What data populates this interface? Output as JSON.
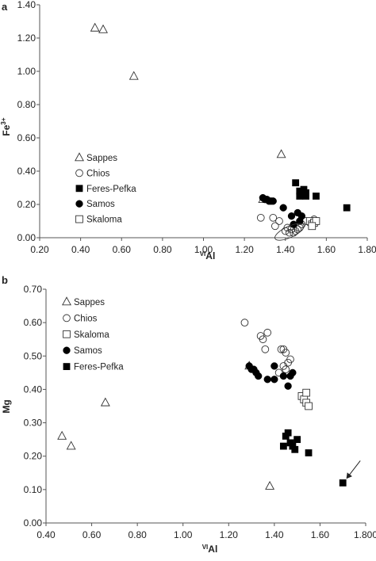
{
  "chart_data": [
    {
      "panel": "a",
      "type": "scatter",
      "xlabel_sup": "VI",
      "xlabel": "Al",
      "ylabel": "Fe",
      "ylabel_sup": "3+",
      "xlim": [
        0.2,
        1.8
      ],
      "ylim": [
        0.0,
        1.4
      ],
      "x_ticks": [
        "0.20",
        "0.40",
        "0.60",
        "0.80",
        "1.00",
        "1.20",
        "1.40",
        "1.60",
        "1.80"
      ],
      "y_ticks": [
        "0.00",
        "0.20",
        "0.40",
        "0.60",
        "0.80",
        "1.00",
        "1.20",
        "1.40"
      ],
      "grid": false,
      "legend_position": "left",
      "series": [
        {
          "name": "Sappes",
          "marker": "open-triangle",
          "points": [
            [
              0.47,
              1.26
            ],
            [
              0.51,
              1.25
            ],
            [
              0.66,
              0.97
            ],
            [
              1.38,
              0.5
            ],
            [
              1.29,
              0.23
            ]
          ]
        },
        {
          "name": "Chios",
          "marker": "open-circle",
          "points": [
            [
              1.28,
              0.12
            ],
            [
              1.34,
              0.12
            ],
            [
              1.35,
              0.07
            ],
            [
              1.37,
              0.1
            ],
            [
              1.4,
              0.04
            ],
            [
              1.41,
              0.06
            ],
            [
              1.42,
              0.03
            ],
            [
              1.43,
              0.05
            ],
            [
              1.44,
              0.03
            ],
            [
              1.45,
              0.04
            ],
            [
              1.46,
              0.05
            ],
            [
              1.47,
              0.06
            ],
            [
              1.48,
              0.08
            ],
            [
              1.5,
              0.1
            ],
            [
              1.52,
              0.09
            ],
            [
              1.53,
              0.1
            ],
            [
              1.54,
              0.11
            ]
          ]
        },
        {
          "name": "Feres-Pefka",
          "marker": "filled-square",
          "points": [
            [
              1.45,
              0.33
            ],
            [
              1.47,
              0.28
            ],
            [
              1.48,
              0.26
            ],
            [
              1.49,
              0.29
            ],
            [
              1.5,
              0.27
            ],
            [
              1.5,
              0.25
            ],
            [
              1.47,
              0.25
            ],
            [
              1.55,
              0.25
            ],
            [
              1.7,
              0.18
            ]
          ]
        },
        {
          "name": "Samos",
          "marker": "filled-circle",
          "points": [
            [
              1.29,
              0.24
            ],
            [
              1.3,
              0.23
            ],
            [
              1.31,
              0.23
            ],
            [
              1.32,
              0.22
            ],
            [
              1.33,
              0.22
            ],
            [
              1.34,
              0.22
            ],
            [
              1.39,
              0.18
            ],
            [
              1.43,
              0.13
            ],
            [
              1.46,
              0.15
            ],
            [
              1.48,
              0.13
            ],
            [
              1.44,
              0.08
            ],
            [
              1.47,
              0.1
            ]
          ]
        },
        {
          "name": "Skaloma",
          "marker": "open-square",
          "points": [
            [
              1.52,
              0.1
            ],
            [
              1.53,
              0.08
            ],
            [
              1.54,
              0.09
            ],
            [
              1.55,
              0.1
            ],
            [
              1.53,
              0.07
            ]
          ]
        }
      ]
    },
    {
      "panel": "b",
      "type": "scatter",
      "xlabel_sup": "VI",
      "xlabel": "Al",
      "ylabel": "Mg",
      "xlim": [
        0.4,
        1.8
      ],
      "ylim": [
        0.0,
        0.7
      ],
      "x_ticks": [
        "0.40",
        "0.60",
        "0.80",
        "1.00",
        "1.20",
        "1.40",
        "1.60",
        "1.800"
      ],
      "y_ticks": [
        "0.00",
        "0.10",
        "0.20",
        "0.30",
        "0.40",
        "0.50",
        "0.60",
        "0.70"
      ],
      "grid": false,
      "legend_position": "top-left",
      "series": [
        {
          "name": "Sappes",
          "marker": "open-triangle",
          "points": [
            [
              0.47,
              0.26
            ],
            [
              0.51,
              0.23
            ],
            [
              0.66,
              0.36
            ],
            [
              1.38,
              0.11
            ],
            [
              1.29,
              0.47
            ]
          ]
        },
        {
          "name": "Chios",
          "marker": "open-circle",
          "points": [
            [
              1.27,
              0.6
            ],
            [
              1.34,
              0.56
            ],
            [
              1.35,
              0.55
            ],
            [
              1.37,
              0.57
            ],
            [
              1.36,
              0.52
            ],
            [
              1.43,
              0.52
            ],
            [
              1.44,
              0.52
            ],
            [
              1.45,
              0.51
            ],
            [
              1.46,
              0.48
            ],
            [
              1.47,
              0.49
            ],
            [
              1.42,
              0.45
            ],
            [
              1.44,
              0.47
            ],
            [
              1.45,
              0.46
            ]
          ]
        },
        {
          "name": "Skaloma",
          "marker": "open-square",
          "points": [
            [
              1.52,
              0.38
            ],
            [
              1.53,
              0.37
            ],
            [
              1.54,
              0.39
            ],
            [
              1.54,
              0.36
            ],
            [
              1.55,
              0.35
            ]
          ]
        },
        {
          "name": "Samos",
          "marker": "filled-circle",
          "points": [
            [
              1.29,
              0.47
            ],
            [
              1.3,
              0.46
            ],
            [
              1.31,
              0.46
            ],
            [
              1.32,
              0.45
            ],
            [
              1.33,
              0.44
            ],
            [
              1.37,
              0.43
            ],
            [
              1.4,
              0.43
            ],
            [
              1.44,
              0.44
            ],
            [
              1.46,
              0.41
            ],
            [
              1.47,
              0.44
            ],
            [
              1.48,
              0.45
            ],
            [
              1.4,
              0.47
            ]
          ]
        },
        {
          "name": "Feres-Pefka",
          "marker": "filled-square",
          "points": [
            [
              1.45,
              0.26
            ],
            [
              1.46,
              0.27
            ],
            [
              1.44,
              0.23
            ],
            [
              1.47,
              0.24
            ],
            [
              1.48,
              0.23
            ],
            [
              1.49,
              0.22
            ],
            [
              1.5,
              0.25
            ],
            [
              1.55,
              0.21
            ],
            [
              1.7,
              0.12
            ]
          ]
        }
      ],
      "annotation": {
        "type": "arrow",
        "points_to": [
          1.7,
          0.12
        ]
      }
    }
  ]
}
